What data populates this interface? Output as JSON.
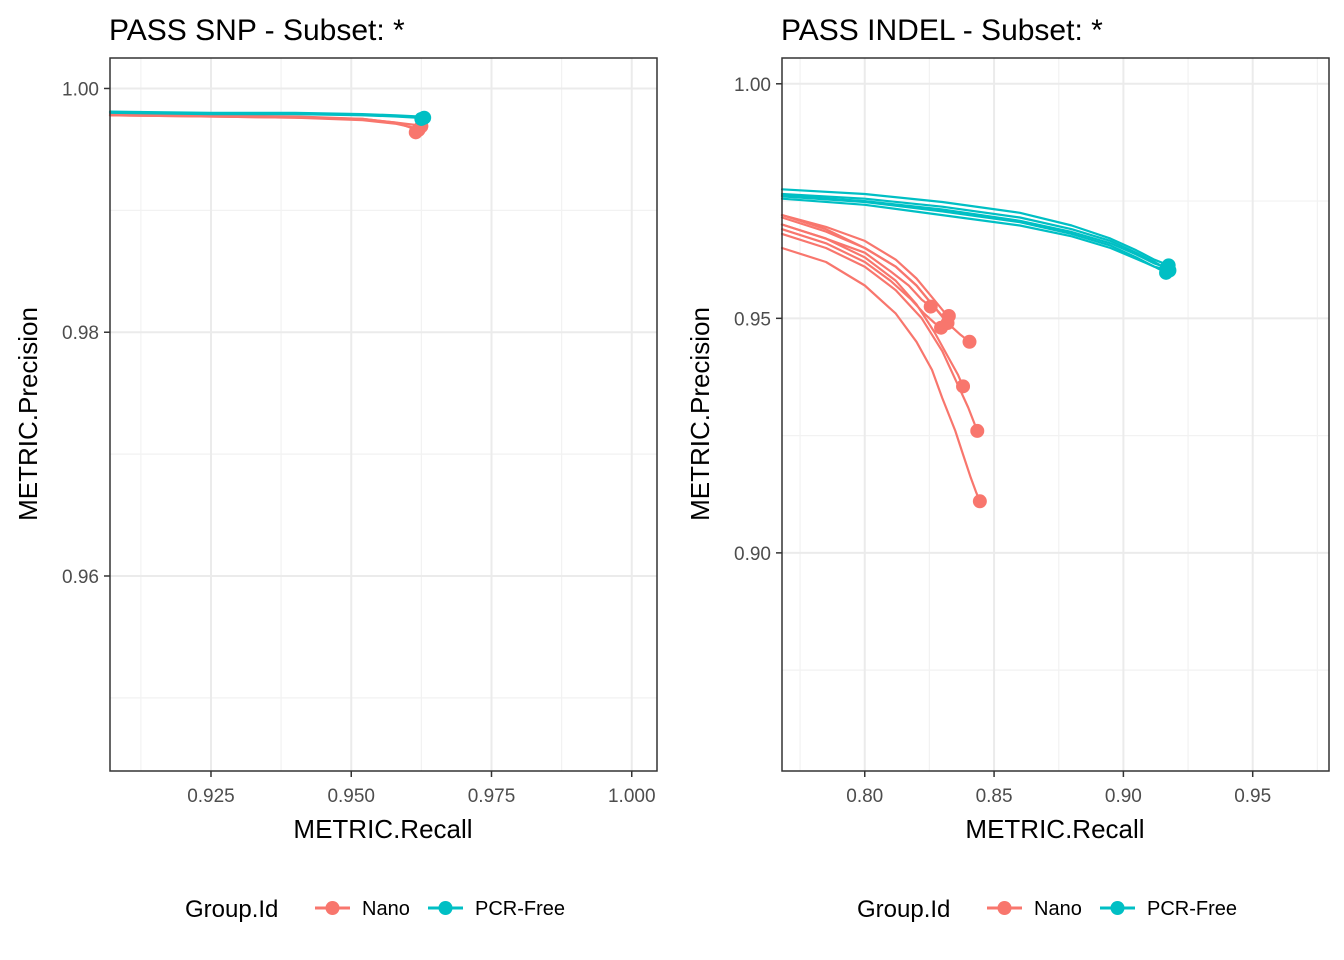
{
  "chart_data": [
    {
      "type": "line",
      "title": "PASS SNP - Subset: *",
      "xlabel": "METRIC.Recall",
      "ylabel": "METRIC.Precision",
      "xlim": [
        0.907,
        1.0045
      ],
      "ylim": [
        0.944,
        1.0025
      ],
      "x_ticks": [
        0.925,
        0.95,
        0.975,
        1.0
      ],
      "x_tick_labels": [
        "0.925",
        "0.950",
        "0.975",
        "1.000"
      ],
      "y_ticks": [
        0.96,
        0.98,
        1.0
      ],
      "y_tick_labels": [
        "0.96",
        "0.98",
        "1.00"
      ],
      "grid": true,
      "legend_position": "bottom",
      "legend_title": "Group.Id",
      "series": [
        {
          "name": "Nano",
          "color": "#F8766D",
          "x": [
            0.907,
            0.925,
            0.94,
            0.952,
            0.958,
            0.9605,
            0.9615
          ],
          "y": [
            0.9979,
            0.9978,
            0.9977,
            0.9975,
            0.9972,
            0.9968,
            0.9964
          ]
        },
        {
          "name": "Nano",
          "color": "#F8766D",
          "x": [
            0.907,
            0.925,
            0.94,
            0.952,
            0.958,
            0.961,
            0.962
          ],
          "y": [
            0.9978,
            0.9977,
            0.9976,
            0.9974,
            0.9971,
            0.9968,
            0.9966
          ]
        },
        {
          "name": "Nano",
          "color": "#F8766D",
          "x": [
            0.907,
            0.925,
            0.94,
            0.952,
            0.958,
            0.9615,
            0.9625
          ],
          "y": [
            0.9978,
            0.9977,
            0.9976,
            0.9975,
            0.9972,
            0.997,
            0.9969
          ]
        },
        {
          "name": "PCR-Free",
          "color": "#00BFC4",
          "x": [
            0.907,
            0.925,
            0.94,
            0.952,
            0.958,
            0.962,
            0.963
          ],
          "y": [
            0.9981,
            0.998,
            0.998,
            0.9979,
            0.9978,
            0.9977,
            0.9976
          ]
        },
        {
          "name": "PCR-Free",
          "color": "#00BFC4",
          "x": [
            0.907,
            0.925,
            0.94,
            0.952,
            0.958,
            0.9615,
            0.9625
          ],
          "y": [
            0.998,
            0.9979,
            0.9979,
            0.9978,
            0.9977,
            0.9976,
            0.9975
          ]
        }
      ]
    },
    {
      "type": "line",
      "title": "PASS INDEL - Subset: *",
      "xlabel": "METRIC.Recall",
      "ylabel": "METRIC.Precision",
      "xlim": [
        0.768,
        0.9795
      ],
      "ylim": [
        0.8535,
        1.0055
      ],
      "x_ticks": [
        0.8,
        0.85,
        0.9,
        0.95
      ],
      "x_tick_labels": [
        "0.80",
        "0.85",
        "0.90",
        "0.95"
      ],
      "y_ticks": [
        0.9,
        0.95,
        1.0
      ],
      "y_tick_labels": [
        "0.90",
        "0.95",
        "1.00"
      ],
      "grid": true,
      "legend_position": "bottom",
      "legend_title": "Group.Id",
      "series": [
        {
          "name": "Nano",
          "color": "#F8766D",
          "x": [
            0.768,
            0.785,
            0.8,
            0.812,
            0.82,
            0.826,
            0.83,
            0.835,
            0.838,
            0.841,
            0.843,
            0.8445
          ],
          "y": [
            0.965,
            0.962,
            0.957,
            0.951,
            0.945,
            0.939,
            0.933,
            0.926,
            0.921,
            0.916,
            0.913,
            0.911
          ]
        },
        {
          "name": "Nano",
          "color": "#F8766D",
          "x": [
            0.768,
            0.785,
            0.8,
            0.812,
            0.822,
            0.83,
            0.835,
            0.84,
            0.8435
          ],
          "y": [
            0.968,
            0.965,
            0.961,
            0.956,
            0.95,
            0.943,
            0.937,
            0.931,
            0.926
          ]
        },
        {
          "name": "Nano",
          "color": "#F8766D",
          "x": [
            0.768,
            0.785,
            0.8,
            0.812,
            0.82,
            0.827,
            0.832,
            0.836,
            0.838
          ],
          "y": [
            0.97,
            0.967,
            0.963,
            0.958,
            0.953,
            0.947,
            0.942,
            0.938,
            0.9355
          ]
        },
        {
          "name": "Nano",
          "color": "#F8766D",
          "x": [
            0.768,
            0.785,
            0.8,
            0.81,
            0.818,
            0.823,
            0.827,
            0.8295
          ],
          "y": [
            0.969,
            0.966,
            0.962,
            0.958,
            0.954,
            0.951,
            0.949,
            0.948
          ]
        },
        {
          "name": "Nano",
          "color": "#F8766D",
          "x": [
            0.768,
            0.785,
            0.8,
            0.812,
            0.82,
            0.826,
            0.83,
            0.832
          ],
          "y": [
            0.972,
            0.969,
            0.965,
            0.961,
            0.957,
            0.953,
            0.9505,
            0.949
          ]
        },
        {
          "name": "Nano",
          "color": "#F8766D",
          "x": [
            0.768,
            0.785,
            0.8,
            0.81,
            0.817,
            0.822,
            0.8255
          ],
          "y": [
            0.97,
            0.967,
            0.964,
            0.96,
            0.957,
            0.954,
            0.9525
          ]
        },
        {
          "name": "Nano",
          "color": "#F8766D",
          "x": [
            0.768,
            0.785,
            0.8,
            0.812,
            0.82,
            0.826,
            0.832,
            0.837,
            0.8405
          ],
          "y": [
            0.9715,
            0.9685,
            0.965,
            0.961,
            0.957,
            0.953,
            0.949,
            0.9465,
            0.945
          ]
        },
        {
          "name": "Nano",
          "color": "#F8766D",
          "x": [
            0.768,
            0.785,
            0.8,
            0.812,
            0.82,
            0.826,
            0.8305,
            0.8325
          ],
          "y": [
            0.972,
            0.9695,
            0.9665,
            0.9625,
            0.9585,
            0.9545,
            0.9515,
            0.9505
          ]
        },
        {
          "name": "PCR-Free",
          "color": "#00BFC4",
          "x": [
            0.768,
            0.8,
            0.83,
            0.86,
            0.88,
            0.895,
            0.905,
            0.912,
            0.9175
          ],
          "y": [
            0.9775,
            0.9765,
            0.9748,
            0.9725,
            0.9698,
            0.967,
            0.9645,
            0.9625,
            0.9613
          ]
        },
        {
          "name": "PCR-Free",
          "color": "#00BFC4",
          "x": [
            0.768,
            0.8,
            0.83,
            0.86,
            0.88,
            0.895,
            0.905,
            0.912,
            0.917
          ],
          "y": [
            0.9765,
            0.9755,
            0.9738,
            0.9715,
            0.969,
            0.9665,
            0.964,
            0.962,
            0.9605
          ]
        },
        {
          "name": "PCR-Free",
          "color": "#00BFC4",
          "x": [
            0.768,
            0.8,
            0.83,
            0.86,
            0.88,
            0.895,
            0.905,
            0.912,
            0.9165
          ],
          "y": [
            0.976,
            0.9748,
            0.9728,
            0.9705,
            0.968,
            0.9655,
            0.963,
            0.961,
            0.9597
          ]
        },
        {
          "name": "PCR-Free",
          "color": "#00BFC4",
          "x": [
            0.768,
            0.8,
            0.83,
            0.86,
            0.88,
            0.895,
            0.905,
            0.912,
            0.9178
          ],
          "y": [
            0.9755,
            0.9742,
            0.972,
            0.9698,
            0.9675,
            0.965,
            0.9627,
            0.961,
            0.9602
          ]
        },
        {
          "name": "PCR-Free",
          "color": "#00BFC4",
          "x": [
            0.768,
            0.8,
            0.83,
            0.86,
            0.88,
            0.895,
            0.905,
            0.912,
            0.9168
          ],
          "y": [
            0.9762,
            0.975,
            0.9732,
            0.9708,
            0.9684,
            0.966,
            0.9636,
            0.9617,
            0.9608
          ]
        }
      ]
    }
  ],
  "legend": {
    "title": "Group.Id",
    "items": [
      {
        "label": "Nano",
        "color": "#F8766D"
      },
      {
        "label": "PCR-Free",
        "color": "#00BFC4"
      }
    ]
  }
}
